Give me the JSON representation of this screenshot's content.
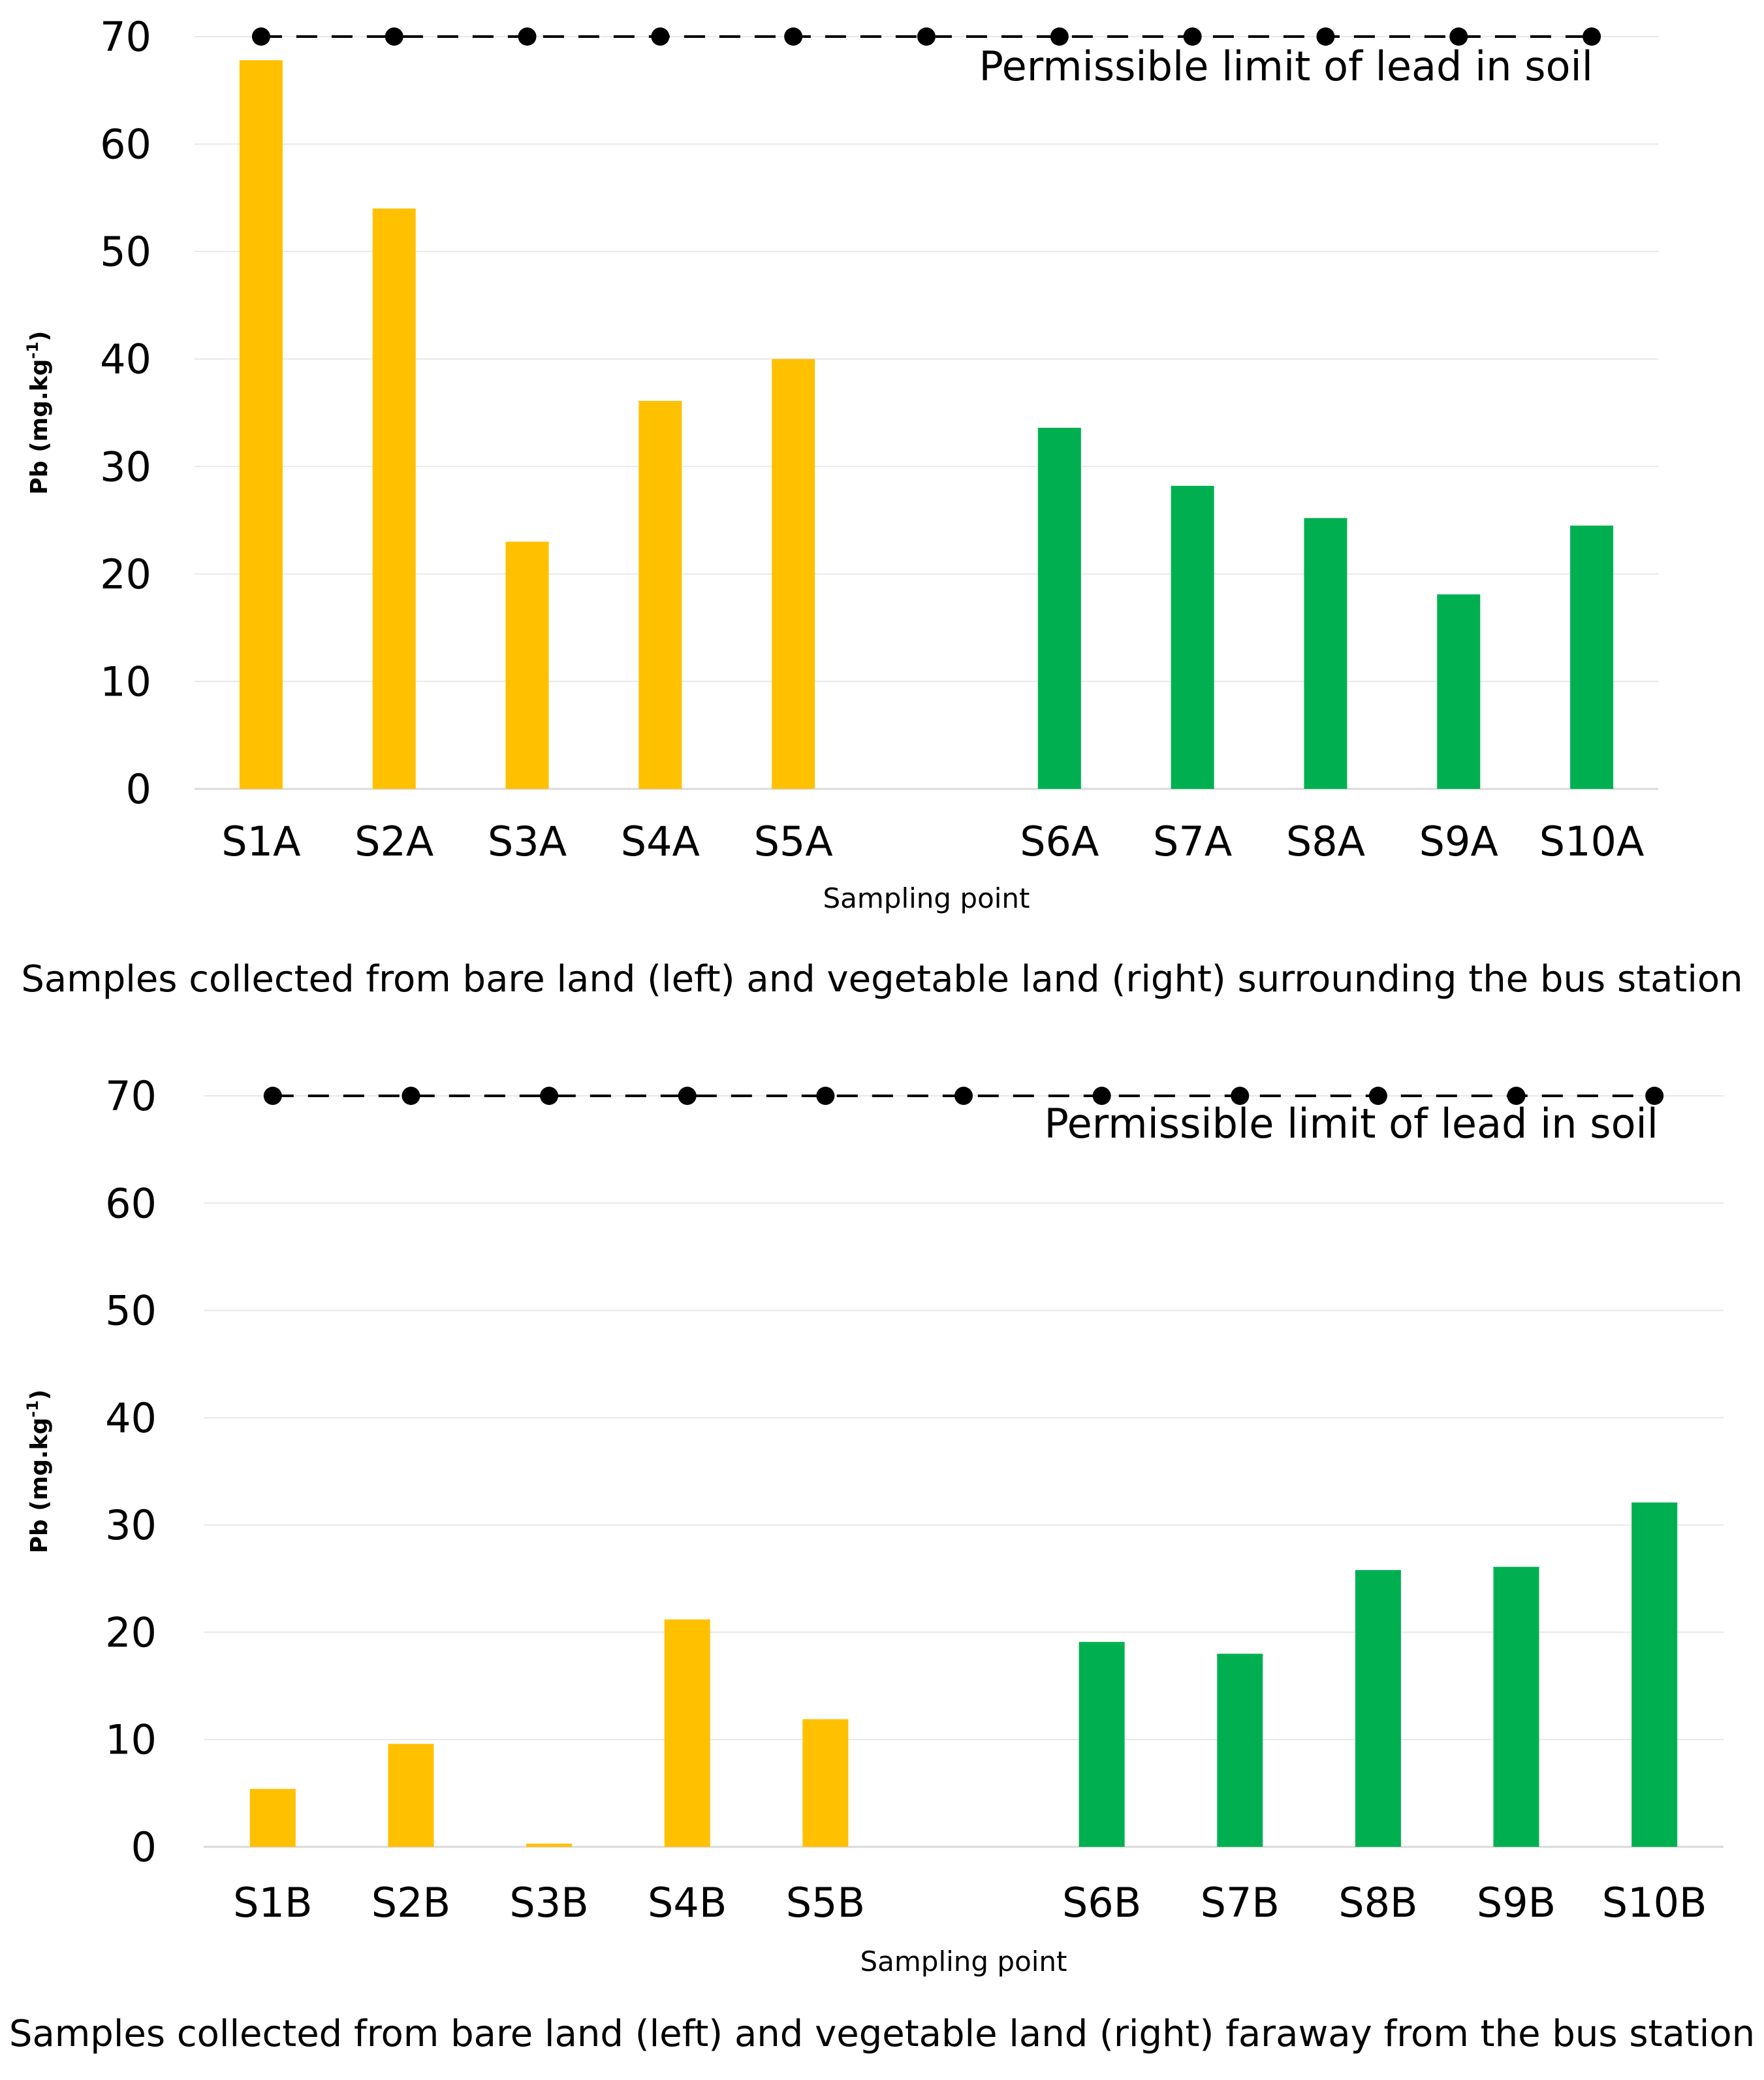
{
  "chart_data": [
    {
      "type": "bar",
      "categories": [
        "S1A",
        "S2A",
        "S3A",
        "S4A",
        "S5A",
        "",
        "S6A",
        "S7A",
        "S8A",
        "S9A",
        "S10A"
      ],
      "values": [
        67.8,
        54,
        23,
        36.1,
        40,
        null,
        33.6,
        28.2,
        25.2,
        18.1,
        24.5
      ],
      "colors": [
        "#FFC000",
        "#FFC000",
        "#FFC000",
        "#FFC000",
        "#FFC000",
        null,
        "#00B050",
        "#00B050",
        "#00B050",
        "#00B050",
        "#00B050"
      ],
      "limit": {
        "value": 70,
        "label": "Permissible limit of lead in soil",
        "color": "#000000"
      },
      "xlabel": "Sampling point",
      "ylabel_main": "Pb (mg.kg",
      "ylabel_sup": "-1",
      "ylabel_end": ")",
      "ylim": [
        0,
        70
      ],
      "yticks": [
        "0",
        "10",
        "20",
        "30",
        "40",
        "50",
        "60",
        "70"
      ],
      "caption": "Samples collected from bare land (left) and vegetable land (right) surrounding the bus station",
      "grid": true
    },
    {
      "type": "bar",
      "categories": [
        "S1B",
        "S2B",
        "S3B",
        "S4B",
        "S5B",
        "",
        "S6B",
        "S7B",
        "S8B",
        "S9B",
        "S10B"
      ],
      "values": [
        5.4,
        9.6,
        0.3,
        21.2,
        11.9,
        null,
        19.1,
        18,
        25.8,
        26.1,
        32.1
      ],
      "colors": [
        "#FFC000",
        "#FFC000",
        "#FFC000",
        "#FFC000",
        "#FFC000",
        null,
        "#00B050",
        "#00B050",
        "#00B050",
        "#00B050",
        "#00B050"
      ],
      "limit": {
        "value": 70,
        "label": "Permissible limit of lead in soil",
        "color": "#000000"
      },
      "xlabel": "Sampling point",
      "ylabel_main": "Pb (mg.kg",
      "ylabel_sup": "-1",
      "ylabel_end": ")",
      "ylim": [
        0,
        70
      ],
      "yticks": [
        "0",
        "10",
        "20",
        "30",
        "40",
        "50",
        "60",
        "70"
      ],
      "caption": "Samples collected from bare land (left) and vegetable land (right) faraway from the bus station",
      "grid": true
    }
  ]
}
